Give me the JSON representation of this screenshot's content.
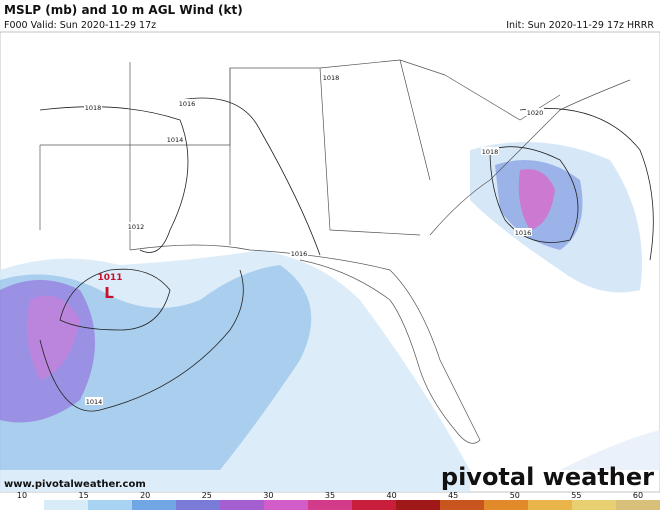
{
  "header": {
    "title": "MSLP (mb) and 10 m AGL Wind (kt)",
    "valid": "F000 Valid: Sun 2020-11-29 17z",
    "init": "Init: Sun 2020-11-29 17z HRRR"
  },
  "isobars": [
    {
      "label": "1018"
    },
    {
      "label": "1016"
    },
    {
      "label": "1018"
    },
    {
      "label": "1014"
    },
    {
      "label": "1012"
    },
    {
      "label": "1016"
    },
    {
      "label": "1014"
    },
    {
      "label": "1020"
    },
    {
      "label": "1018"
    },
    {
      "label": "1016"
    }
  ],
  "low": {
    "pressure": "1011",
    "symbol": "L"
  },
  "website": "www.pivotalweather.com",
  "logo": "pivotal weather",
  "colorbar": {
    "ticks": [
      "10",
      "15",
      "20",
      "25",
      "30",
      "35",
      "40",
      "45",
      "50",
      "55",
      "60"
    ]
  }
}
